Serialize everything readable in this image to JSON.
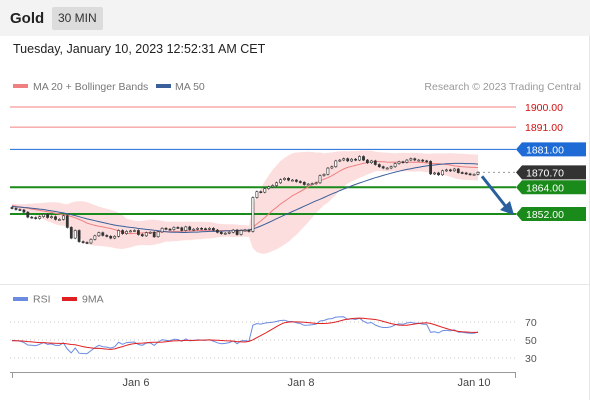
{
  "header": {
    "title": "Gold",
    "timeframe": "30 MIN"
  },
  "datetime": "Tuesday, January 10, 2023 12:52:31 AM CET",
  "legend": {
    "ma20": "MA 20 + Bollinger Bands",
    "ma50": "MA 50",
    "copyright": "Research © 2023 Trading Central"
  },
  "colors": {
    "resistance": "#f08080",
    "support": "#1a8a1a",
    "pivot": "#1e6bd6",
    "last": "#333333",
    "ma20": "#f08080",
    "ma50": "#3a5f9a",
    "arrow": "#2a5f9e",
    "rsi": "#6a8be0",
    "rsi_ma": "#e02020"
  },
  "chart_data": [
    {
      "type": "candlestick",
      "ylim": [
        1838,
        1907
      ],
      "x_labels": [
        "Jan 6",
        "Jan 8",
        "Jan 10"
      ],
      "levels": [
        {
          "name": "resistance-2",
          "value": 1900.0,
          "label": "1900.00",
          "kind": "resistance"
        },
        {
          "name": "resistance-1",
          "value": 1891.0,
          "label": "1891.00",
          "kind": "resistance"
        },
        {
          "name": "pivot",
          "value": 1881.0,
          "label": "1881.00",
          "kind": "pivot"
        },
        {
          "name": "last-price",
          "value": 1870.7,
          "label": "1870.70",
          "kind": "last"
        },
        {
          "name": "support-1",
          "value": 1864.0,
          "label": "1864.00",
          "kind": "support"
        },
        {
          "name": "support-2",
          "value": 1852.0,
          "label": "1852.00",
          "kind": "support"
        }
      ],
      "close": [
        1854.5,
        1854,
        1853.8,
        1852.8,
        1850.6,
        1850.4,
        1850,
        1850.8,
        1851.8,
        1850.4,
        1850.8,
        1849.6,
        1849.6,
        1851.2,
        1846,
        1841.2,
        1844.6,
        1839.6,
        1839.2,
        1839,
        1840.6,
        1842.2,
        1843.6,
        1842.4,
        1842,
        1841.2,
        1842,
        1844.6,
        1843.2,
        1844.2,
        1844.4,
        1844.6,
        1842.8,
        1842.2,
        1843.6,
        1843.8,
        1841.8,
        1844,
        1845.6,
        1845.2,
        1845,
        1846,
        1845.8,
        1844.6,
        1846.2,
        1845,
        1845.2,
        1845.6,
        1845.4,
        1845.2,
        1845.6,
        1844.8,
        1843.8,
        1843.2,
        1843.4,
        1843.8,
        1844.8,
        1842.8,
        1844.6,
        1844.8,
        1844.2,
        1859.4,
        1862,
        1861.8,
        1863.4,
        1864.2,
        1864.8,
        1866,
        1867.4,
        1868,
        1867.2,
        1867.2,
        1866.6,
        1866.2,
        1865.2,
        1865.4,
        1865.6,
        1866,
        1869.2,
        1869.8,
        1872.6,
        1873.2,
        1875.8,
        1876.2,
        1876.8,
        1875.8,
        1876.6,
        1876.2,
        1877.8,
        1876.2,
        1875,
        1875.8,
        1874.2,
        1873.2,
        1872.6,
        1872.6,
        1873.2,
        1874.6,
        1875.4,
        1875.2,
        1876.2,
        1876.8,
        1876.2,
        1876.2,
        1875.8,
        1875.6,
        1870,
        1870.4,
        1869.6,
        1871.4,
        1871.8,
        1871.4,
        1872.2,
        1870.6,
        1870.4,
        1870,
        1869.8,
        1869.8,
        1870.7
      ],
      "ma20": [
        1855.8,
        1855.5,
        1855.2,
        1854.9,
        1854.6,
        1854.2,
        1853.9,
        1853.6,
        1853.3,
        1853,
        1852.7,
        1852.3,
        1852,
        1851.7,
        1851.4,
        1850.9,
        1850.3,
        1849.6,
        1848.8,
        1847.9,
        1847.4,
        1846.9,
        1846.5,
        1846.2,
        1845.8,
        1845.5,
        1845,
        1844.5,
        1843.9,
        1843.3,
        1843.2,
        1843.3,
        1843.4,
        1843.5,
        1843.6,
        1843.7,
        1843.8,
        1843.9,
        1844,
        1844.1,
        1844.1,
        1844.2,
        1844.2,
        1844.3,
        1844.4,
        1844.4,
        1844.5,
        1844.6,
        1844.6,
        1844.7,
        1844.7,
        1844.7,
        1844.6,
        1844.6,
        1844.6,
        1844.6,
        1844.5,
        1844.5,
        1844.4,
        1844.4,
        1844.3,
        1846.1,
        1847.5,
        1848.9,
        1850.4,
        1852,
        1853.6,
        1855,
        1856.5,
        1857.7,
        1858.9,
        1860.2,
        1861.1,
        1862.1,
        1863.1,
        1864.1,
        1865.1,
        1866,
        1866.9,
        1867.6,
        1868.3,
        1869.2,
        1870.2,
        1871.3,
        1872.2,
        1872.9,
        1873.4,
        1873.8,
        1874.3,
        1874.7,
        1875.1,
        1875.4,
        1875.6,
        1875.5,
        1875.4,
        1875.3,
        1875.2,
        1875.3,
        1875.3,
        1875.3,
        1875.3,
        1875.2,
        1875.2,
        1875.2,
        1875.1,
        1874.9,
        1874.8,
        1874.6,
        1874.6,
        1874.4,
        1874.2,
        1874,
        1873.6,
        1873.4,
        1873.2,
        1873.1,
        1873,
        1872.9,
        1872.8
      ],
      "ma50": [
        1855.4,
        1855.2,
        1855.1,
        1854.9,
        1854.8,
        1854.6,
        1854.4,
        1854.2,
        1854,
        1853.7,
        1853.4,
        1853.1,
        1852.8,
        1852.5,
        1852.1,
        1851.7,
        1851.3,
        1850.8,
        1850.3,
        1849.8,
        1849.4,
        1849,
        1848.6,
        1848.2,
        1847.8,
        1847.4,
        1847,
        1846.7,
        1846.5,
        1846.2,
        1846,
        1845.8,
        1845.5,
        1845.3,
        1845.1,
        1844.9,
        1844.7,
        1844.5,
        1844.2,
        1844,
        1843.9,
        1843.8,
        1843.8,
        1843.7,
        1843.7,
        1843.8,
        1843.9,
        1843.9,
        1844,
        1844.1,
        1844.2,
        1844.2,
        1844.3,
        1844.3,
        1844.4,
        1844.4,
        1844.5,
        1844.6,
        1844.7,
        1844.8,
        1844.8,
        1845.3,
        1845.9,
        1846.6,
        1847.4,
        1848.2,
        1849,
        1849.9,
        1850.7,
        1851.5,
        1852.3,
        1853.1,
        1853.9,
        1854.7,
        1855.5,
        1856.3,
        1857.1,
        1857.9,
        1858.6,
        1859.4,
        1860.2,
        1861,
        1861.7,
        1862.5,
        1863.2,
        1863.9,
        1864.6,
        1865.3,
        1865.9,
        1866.5,
        1867.1,
        1867.7,
        1868.3,
        1868.8,
        1869.3,
        1869.8,
        1870.3,
        1870.8,
        1871.2,
        1871.6,
        1872,
        1872.3,
        1872.7,
        1873,
        1873.3,
        1873.6,
        1873.8,
        1874,
        1874.2,
        1874.4,
        1874.5,
        1874.6,
        1874.7,
        1874.7,
        1874.7,
        1874.6,
        1874.6,
        1874.5,
        1874.4
      ],
      "bb_upper": [
        1856.6,
        1856.5,
        1856.4,
        1856.4,
        1856.6,
        1856.6,
        1856.8,
        1856.9,
        1857,
        1857.2,
        1857.3,
        1857.2,
        1857.1,
        1856.6,
        1856.4,
        1857.1,
        1857.6,
        1857.7,
        1857.7,
        1857.3,
        1856.7,
        1856,
        1855.3,
        1854.8,
        1854.3,
        1853.9,
        1853.3,
        1852.5,
        1851.5,
        1849.9,
        1849.4,
        1849,
        1848.8,
        1848.9,
        1849.2,
        1849.4,
        1849.4,
        1849.2,
        1848.9,
        1848.6,
        1848.6,
        1848.6,
        1848.5,
        1848.5,
        1848.5,
        1848.6,
        1848.5,
        1848.5,
        1848.5,
        1848.4,
        1848.4,
        1848.2,
        1847.7,
        1847.5,
        1847.4,
        1847.4,
        1847.4,
        1847.3,
        1847,
        1847,
        1846.8,
        1855.6,
        1860.1,
        1863.5,
        1866.6,
        1869.3,
        1871.8,
        1873.8,
        1875.8,
        1877.1,
        1878.3,
        1879.2,
        1879.6,
        1879.7,
        1879.8,
        1879.9,
        1879.8,
        1879.6,
        1879.6,
        1879.2,
        1879.5,
        1879.6,
        1879.9,
        1880.1,
        1880.2,
        1880.1,
        1880.2,
        1880.2,
        1880.4,
        1880.5,
        1880.5,
        1880.4,
        1880,
        1879.7,
        1879.6,
        1879.5,
        1879.3,
        1879.2,
        1879.4,
        1879.4,
        1879.4,
        1879.4,
        1879.4,
        1879.3,
        1879.2,
        1879.1,
        1879.1,
        1879.2,
        1879.2,
        1879.2,
        1879.2,
        1879.3,
        1879.2,
        1879.1,
        1879,
        1878.9,
        1878.8,
        1878.7,
        1878.6
      ],
      "bb_lower": [
        1855,
        1854.5,
        1854,
        1853.4,
        1852.6,
        1851.8,
        1851,
        1850.3,
        1849.6,
        1848.8,
        1848.1,
        1847.4,
        1846.9,
        1846.8,
        1846.4,
        1844.7,
        1843,
        1841.5,
        1839.9,
        1838.5,
        1838.1,
        1837.8,
        1837.7,
        1837.6,
        1837.3,
        1837.1,
        1836.7,
        1836.5,
        1836.3,
        1836.7,
        1837,
        1837.6,
        1838,
        1838.1,
        1838,
        1838,
        1838.2,
        1838.6,
        1839.1,
        1839.6,
        1839.6,
        1839.8,
        1839.9,
        1840.1,
        1840.3,
        1840.2,
        1840.5,
        1840.7,
        1840.7,
        1841,
        1841,
        1841.2,
        1841.5,
        1841.7,
        1841.8,
        1841.8,
        1841.6,
        1841.7,
        1841.8,
        1841.8,
        1841.8,
        1836.6,
        1834.9,
        1834.3,
        1834.2,
        1834.7,
        1835.4,
        1836.2,
        1837.2,
        1838.3,
        1839.5,
        1841.2,
        1842.6,
        1844.5,
        1846.4,
        1848.3,
        1850.4,
        1852.4,
        1854.2,
        1856,
        1857.1,
        1858.8,
        1860.5,
        1862.5,
        1864.2,
        1865.7,
        1866.6,
        1867.4,
        1868.2,
        1868.9,
        1869.7,
        1870.4,
        1871.2,
        1871.3,
        1871.2,
        1871.1,
        1871.1,
        1871.4,
        1871.2,
        1871.2,
        1871.2,
        1871,
        1871,
        1871.1,
        1871,
        1870.7,
        1870.5,
        1870,
        1870,
        1869.6,
        1869.2,
        1868.7,
        1868,
        1867.7,
        1867.4,
        1867.3,
        1867.2,
        1867.1,
        1867
      ]
    },
    {
      "type": "line",
      "legend": [
        "RSI",
        "9MA"
      ],
      "ylim": [
        20,
        80
      ],
      "y_ticks": [
        70,
        50,
        30
      ],
      "rsi": [
        49.6,
        48.7,
        48.3,
        46.2,
        42.1,
        41.7,
        41,
        43.2,
        45.8,
        43,
        43.8,
        41.4,
        41.4,
        45.6,
        35.7,
        29.5,
        37.5,
        29.1,
        28.5,
        28.3,
        33.2,
        37.8,
        41.6,
        39.3,
        38.7,
        37.1,
        39.4,
        46.4,
        43.2,
        45.8,
        46.3,
        46.9,
        42.9,
        41.6,
        45.1,
        45.6,
        41.5,
        46.6,
        50.4,
        49.4,
        48.9,
        51.3,
        50.8,
        47.9,
        51.7,
        48.8,
        49.2,
        50.3,
        49.8,
        49.3,
        50.3,
        48.2,
        45.6,
        44.1,
        44.6,
        45.8,
        48.5,
        44.1,
        48.6,
        49.1,
        47.8,
        73.7,
        76,
        75.3,
        76.9,
        77.6,
        78.3,
        79.5,
        80.9,
        81.5,
        79.3,
        79.3,
        77.3,
        76.2,
        73.3,
        73.7,
        74.3,
        75.2,
        80.1,
        80.9,
        83.4,
        84,
        86.3,
        86.6,
        87,
        82.5,
        83.7,
        82.5,
        84.6,
        79.9,
        76.7,
        77.8,
        73.8,
        71.2,
        69.8,
        69.8,
        71,
        73.9,
        75.5,
        74.9,
        77,
        78.1,
        76.5,
        76.5,
        75.3,
        74.8,
        62.3,
        63,
        61.3,
        64.8,
        65.6,
        64.5,
        66.2,
        62.6,
        62.2,
        61.3,
        60.8,
        60.8,
        62.8
      ],
      "ma9": [
        48.8,
        48.7,
        48.5,
        48.2,
        47.5,
        47,
        46.3,
        45.9,
        45.8,
        45.4,
        45.1,
        44.8,
        44.6,
        44.6,
        43.8,
        42.8,
        42.4,
        40.9,
        39.6,
        38.3,
        37.4,
        36.7,
        36.8,
        36.2,
        35.5,
        35.1,
        35.8,
        38,
        39.6,
        41.6,
        43.2,
        44.3,
        44.8,
        45.1,
        45.6,
        46.2,
        46.5,
        46.5,
        46.7,
        47.3,
        47.9,
        48.5,
        48.9,
        49,
        49.3,
        49.4,
        49.3,
        49.5,
        49.8,
        50,
        50.1,
        49.9,
        49.5,
        49.2,
        48.8,
        48.6,
        48.3,
        47.5,
        47,
        46.9,
        47.8,
        50.3,
        53.7,
        57,
        60.3,
        63.9,
        67.6,
        71.3,
        74.8,
        77.4,
        78.4,
        78.7,
        78.8,
        78.6,
        78.3,
        77.6,
        77,
        76.3,
        76.2,
        76.2,
        76.7,
        77.4,
        78.6,
        80.2,
        81.9,
        83.1,
        84,
        84.4,
        84.8,
        84.6,
        83.8,
        83.2,
        82.5,
        81.2,
        79.5,
        77.7,
        76,
        74.7,
        73.6,
        73.4,
        73.5,
        74.4,
        75.4,
        76.4,
        77,
        77.3,
        76.2,
        74.5,
        72.3,
        70.2,
        68.2,
        66.3,
        65,
        63.7,
        63,
        62.7,
        62.2,
        62,
        61.9
      ]
    }
  ]
}
